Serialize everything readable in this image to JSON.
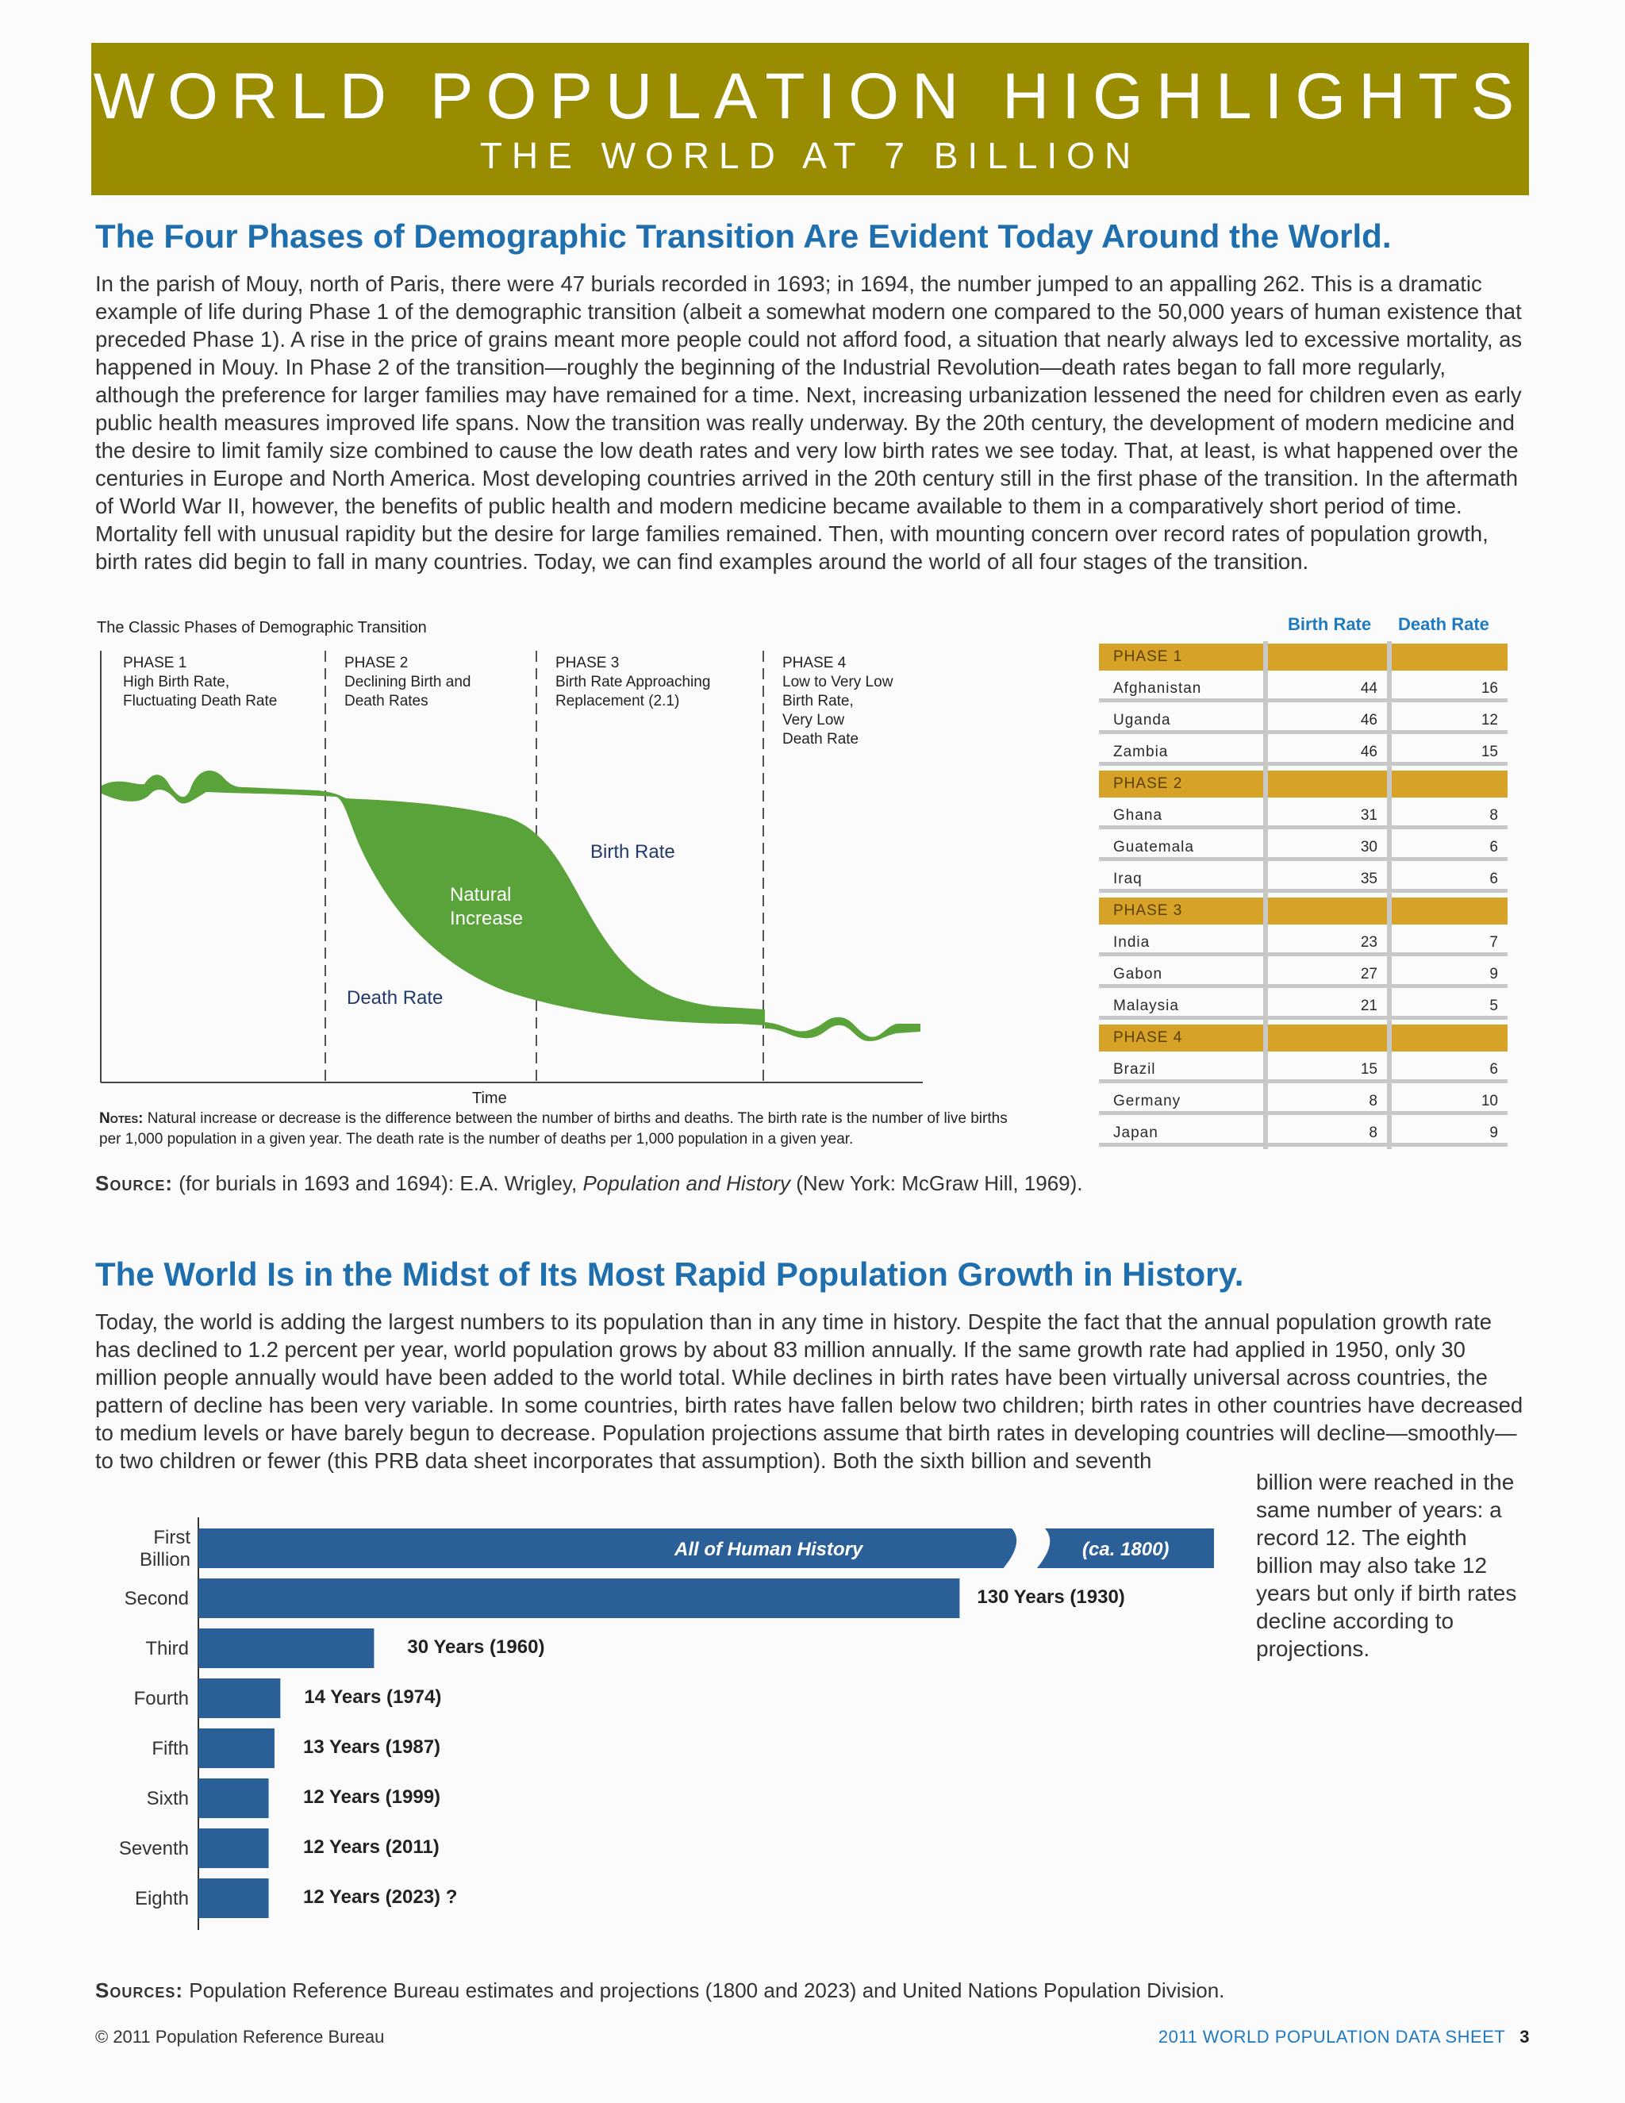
{
  "banner": {
    "title": "WORLD POPULATION HIGHLIGHTS",
    "subtitle": "THE WORLD AT 7 BILLION"
  },
  "section1": {
    "heading": "The Four Phases of Demographic Transition Are Evident Today Around the World.",
    "paragraph": "In the parish of Mouy, north of Paris, there were 47 burials recorded in 1693; in 1694, the number jumped to an appalling 262. This is a dramatic example of life during Phase 1 of the demographic transition (albeit a somewhat modern one compared to the 50,000 years of human existence that preceded Phase 1). A rise in the price of grains meant more people could not afford food, a situation that nearly always led to excessive mortality, as happened in Mouy. In Phase 2 of the transition—roughly the beginning of the Industrial Revolution—death rates began to fall more regularly, although the preference for larger families may have remained for a time. Next, increasing urbanization lessened the need for children even as early public health measures improved life spans. Now the transition was really underway. By the 20th century, the development of modern medicine and the desire to limit family size combined to cause the low death rates and very low birth rates we see today. That, at least, is what happened over the centuries in Europe and North America. Most developing countries arrived in the 20th century still in the first phase of the transition. In the aftermath of World War II, however, the benefits of public health and modern medicine became available to them in a comparatively short period of time. Mortality fell with unusual rapidity but the desire for large families remained. Then, with mounting concern over record rates of population growth, birth rates did begin to fall in many countries. Today, we can find examples around the world of all four stages of the transition."
  },
  "transition_chart": {
    "title": "The Classic Phases of Demographic Transition",
    "phases": [
      {
        "name": "PHASE 1",
        "desc": [
          "High Birth Rate,",
          "Fluctuating Death Rate"
        ]
      },
      {
        "name": "PHASE 2",
        "desc": [
          "Declining Birth and",
          "Death Rates"
        ]
      },
      {
        "name": "PHASE 3",
        "desc": [
          "Birth Rate Approaching",
          "Replacement (2.1)"
        ]
      },
      {
        "name": "PHASE 4",
        "desc": [
          "Low to Very Low",
          "Birth Rate,",
          "Very Low",
          "Death Rate"
        ]
      }
    ],
    "labels": {
      "birth_rate": "Birth Rate",
      "natural_increase_1": "Natural",
      "natural_increase_2": "Increase",
      "death_rate": "Death Rate",
      "x_axis": "Time"
    },
    "colors": {
      "fill": "#5aa33a",
      "divider": "#555555"
    }
  },
  "notes": {
    "label": "Notes:",
    "text": "Natural increase or decrease is the difference between the number of births and deaths. The birth rate is the number of live births per 1,000 population in a given year. The death rate is the number of deaths per 1,000 population in a given year."
  },
  "source1": {
    "label": "Source:",
    "pre": "(for burials in 1693 and 1694): E.A. Wrigley, ",
    "italic": "Population and History",
    "post": " (New York: McGraw Hill, 1969)."
  },
  "rates_table": {
    "headers": {
      "birth": "Birth Rate",
      "death": "Death Rate"
    },
    "rows": [
      {
        "type": "phase",
        "label": "PHASE 1"
      },
      {
        "type": "country",
        "label": "Afghanistan",
        "birth": "44",
        "death": "16"
      },
      {
        "type": "country",
        "label": "Uganda",
        "birth": "46",
        "death": "12"
      },
      {
        "type": "country",
        "label": "Zambia",
        "birth": "46",
        "death": "15"
      },
      {
        "type": "phase",
        "label": "PHASE 2"
      },
      {
        "type": "country",
        "label": "Ghana",
        "birth": "31",
        "death": "8"
      },
      {
        "type": "country",
        "label": "Guatemala",
        "birth": "30",
        "death": "6"
      },
      {
        "type": "country",
        "label": "Iraq",
        "birth": "35",
        "death": "6"
      },
      {
        "type": "phase",
        "label": "PHASE 3"
      },
      {
        "type": "country",
        "label": "India",
        "birth": "23",
        "death": "7"
      },
      {
        "type": "country",
        "label": "Gabon",
        "birth": "27",
        "death": "9"
      },
      {
        "type": "country",
        "label": "Malaysia",
        "birth": "21",
        "death": "5"
      },
      {
        "type": "phase",
        "label": "PHASE 4"
      },
      {
        "type": "country",
        "label": "Brazil",
        "birth": "15",
        "death": "6"
      },
      {
        "type": "country",
        "label": "Germany",
        "birth": "8",
        "death": "10"
      },
      {
        "type": "country",
        "label": "Japan",
        "birth": "8",
        "death": "9"
      }
    ],
    "colors": {
      "phase_band": "#d6a227",
      "grid": "#c8c8c8"
    }
  },
  "section2": {
    "heading": "The World Is in the Midst of Its Most Rapid Population Growth in History.",
    "paragraph": "Today, the world is adding the largest numbers to its population than in any time in history. Despite the fact that the annual population growth rate has declined to 1.2 percent per year, world population grows by about 83 million annually. If the same growth rate had applied in 1950, only 30 million people annually would have been added to the world total. While declines in birth rates have been virtually universal across countries, the pattern of decline has been very variable. In some countries, birth rates have fallen below two children; birth rates in other countries have decreased to medium levels or have barely begun to decrease. Population projections assume that birth rates in developing countries will decline—smoothly—to two children or fewer (this PRB data sheet incorporates that assumption). Both the sixth billion and seventh",
    "side_text": "billion were reached in the same number of years: a record 12. The eighth billion may also take 12 years but only if birth rates decline according to projections."
  },
  "chart_data": {
    "type": "bar",
    "orientation": "horizontal",
    "categories": [
      "First Billion",
      "Second",
      "Third",
      "Fourth",
      "Fifth",
      "Sixth",
      "Seventh",
      "Eighth"
    ],
    "values": [
      null,
      130,
      30,
      14,
      13,
      12,
      12,
      12
    ],
    "value_labels": [
      "All of Human History",
      "130 Years (1930)",
      "30 Years (1960)",
      "14 Years (1974)",
      "13 Years (1987)",
      "12 Years (1999)",
      "12 Years (2011)",
      "12 Years (2023) ?"
    ],
    "first_bar_suffix": "(ca. 1800)",
    "first_bar_broken_axis": true,
    "color": "#2a5f98"
  },
  "source2": {
    "label": "Sources:",
    "text": "Population Reference Bureau estimates and projections (1800 and 2023) and United Nations Population Division."
  },
  "footer": {
    "copyright": "© 2011 Population Reference Bureau",
    "sheet": "2011 WORLD POPULATION DATA SHEET",
    "page": "3"
  }
}
